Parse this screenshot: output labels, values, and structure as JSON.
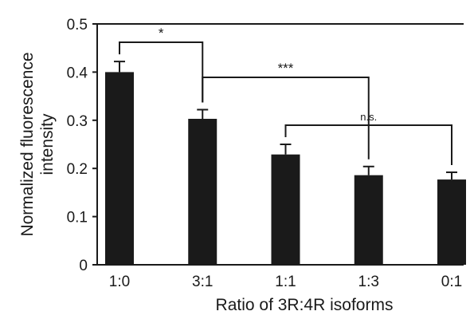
{
  "chart_data": {
    "type": "bar",
    "categories": [
      "1:0",
      "3:1",
      "1:1",
      "1:3",
      "0:1"
    ],
    "values": [
      0.4,
      0.303,
      0.229,
      0.186,
      0.177
    ],
    "errors": [
      0.022,
      0.019,
      0.021,
      0.018,
      0.015
    ],
    "xlabel": "Ratio of 3R:4R isoforms",
    "ylabel_lines": [
      "Normalized fluorescence",
      "intensity"
    ],
    "ylim": [
      0,
      0.5
    ],
    "yticks": [
      "0",
      "0.1",
      "0.2",
      "0.3",
      "0.4",
      "0.5"
    ],
    "grid": false,
    "bar_color": "#1a1a1a",
    "significance": [
      {
        "label": "*",
        "from": 0,
        "to": 1
      },
      {
        "label": "***",
        "from": 1,
        "to": 3
      },
      {
        "label": "n.s.",
        "from": 2,
        "to": 4
      }
    ]
  }
}
